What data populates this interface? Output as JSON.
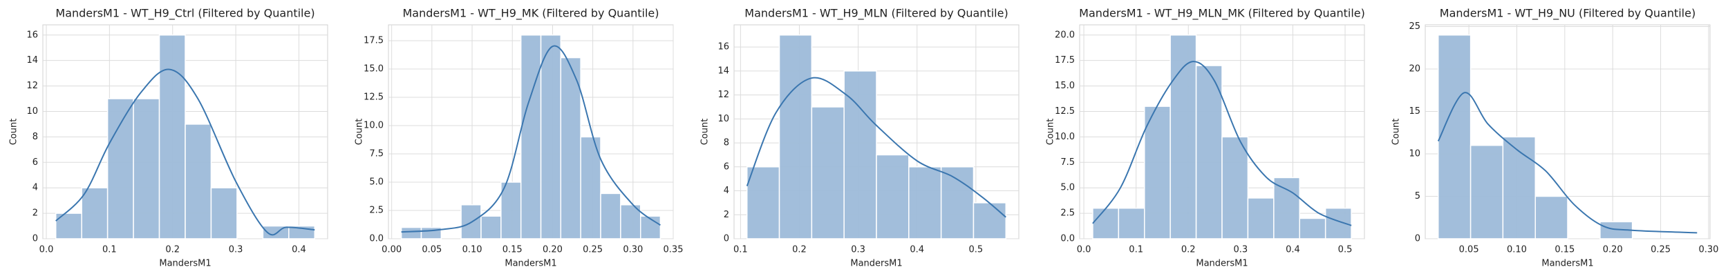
{
  "chart_data": [
    {
      "type": "histogram",
      "title": "MandersM1 - WT_H9_Ctrl (Filtered by Quantile)",
      "x_label": "MandersM1",
      "y_label": "Count",
      "bins": [
        0.015,
        0.056,
        0.097,
        0.138,
        0.179,
        0.22,
        0.261,
        0.302,
        0.343,
        0.384,
        0.425
      ],
      "values": [
        2,
        4,
        11,
        11,
        16,
        9,
        4,
        0,
        1,
        1
      ],
      "color": "#9dbad9",
      "kde": {
        "x": [
          0.015,
          0.06,
          0.1,
          0.15,
          0.195,
          0.24,
          0.3,
          0.35,
          0.38,
          0.425
        ],
        "y": [
          1.4,
          3.5,
          7.5,
          11.5,
          13.3,
          11,
          4.5,
          0.5,
          0.9,
          0.7
        ],
        "color": "#3a76af"
      },
      "xlim": [
        -0.0055,
        0.4455
      ],
      "ylim": [
        0,
        16.8
      ],
      "xticks": [
        {
          "value": 0,
          "label": "0.0"
        },
        0.1,
        0.2,
        0.3,
        0.4
      ],
      "yticks": [
        0,
        2,
        4,
        6,
        8,
        10,
        12,
        14,
        16
      ],
      "grid": true
    },
    {
      "type": "histogram",
      "title": "MandersM1 - WT_H9_MK (Filtered by Quantile)",
      "x_label": "MandersM1",
      "y_label": "Count",
      "bins": [
        0.012,
        0.0368,
        0.0616,
        0.0863,
        0.1111,
        0.1359,
        0.1607,
        0.1855,
        0.2102,
        0.235,
        0.2598,
        0.2846,
        0.3094,
        0.334
      ],
      "values": [
        1,
        1,
        0,
        3,
        2,
        5,
        18,
        18,
        16,
        9,
        4,
        3,
        2
      ],
      "color": "#9dbad9",
      "kde": {
        "x": [
          0.012,
          0.06,
          0.1,
          0.14,
          0.17,
          0.2,
          0.23,
          0.26,
          0.3,
          0.334
        ],
        "y": [
          0.6,
          0.8,
          1.5,
          4.5,
          12,
          17,
          14,
          7,
          3,
          1.2
        ],
        "color": "#3a76af"
      },
      "xlim": [
        -0.004,
        0.35
      ],
      "ylim": [
        0,
        18.9
      ],
      "xticks": [
        {
          "value": 0,
          "label": "0.00"
        },
        0.05,
        {
          "value": 0.1,
          "label": "0.10"
        },
        0.15,
        {
          "value": 0.2,
          "label": "0.20"
        },
        0.25,
        {
          "value": 0.3,
          "label": "0.30"
        },
        0.35
      ],
      "yticks": [
        {
          "value": 0,
          "label": "0.0"
        },
        2.5,
        {
          "value": 5,
          "label": "5.0"
        },
        7.5,
        {
          "value": 10,
          "label": "10.0"
        },
        12.5,
        {
          "value": 15,
          "label": "15.0"
        },
        17.5
      ],
      "grid": true
    },
    {
      "type": "histogram",
      "title": "MandersM1 - WT_H9_MLN (Filtered by Quantile)",
      "x_label": "MandersM1",
      "y_label": "Count",
      "bins": [
        0.111,
        0.166,
        0.221,
        0.276,
        0.331,
        0.386,
        0.441,
        0.496,
        0.551
      ],
      "values": [
        6,
        17,
        11,
        14,
        7,
        6,
        6,
        3
      ],
      "color": "#9dbad9",
      "kde": {
        "x": [
          0.111,
          0.16,
          0.22,
          0.28,
          0.33,
          0.4,
          0.46,
          0.51,
          0.551
        ],
        "y": [
          4.4,
          10.5,
          13.4,
          12,
          9.5,
          6.5,
          5.2,
          3.5,
          1.8
        ],
        "color": "#3a76af"
      },
      "xlim": [
        0.089,
        0.573
      ],
      "ylim": [
        0,
        17.85
      ],
      "xticks": [
        0.1,
        0.2,
        0.3,
        0.4,
        0.5
      ],
      "yticks": [
        0,
        2,
        4,
        6,
        8,
        10,
        12,
        14,
        16
      ],
      "grid": true
    },
    {
      "type": "histogram",
      "title": "MandersM1 - WT_H9_MLN_MK (Filtered by Quantile)",
      "x_label": "MandersM1",
      "y_label": "Count",
      "bins": [
        0.017,
        0.0665,
        0.116,
        0.1655,
        0.215,
        0.2645,
        0.314,
        0.3635,
        0.413,
        0.4625,
        0.512
      ],
      "values": [
        3,
        3,
        13,
        20,
        17,
        10,
        4,
        6,
        2,
        3
      ],
      "color": "#9dbad9",
      "kde": {
        "x": [
          0.017,
          0.07,
          0.12,
          0.17,
          0.21,
          0.25,
          0.3,
          0.35,
          0.4,
          0.45,
          0.512
        ],
        "y": [
          1.5,
          5,
          11,
          15.5,
          17.4,
          15.5,
          9.5,
          6,
          4.5,
          2.5,
          1.3
        ],
        "color": "#3a76af"
      },
      "xlim": [
        -0.008,
        0.537
      ],
      "ylim": [
        0,
        21
      ],
      "xticks": [
        {
          "value": 0,
          "label": "0.0"
        },
        0.1,
        0.2,
        0.3,
        0.4,
        0.5
      ],
      "yticks": [
        {
          "value": 0,
          "label": "0.0"
        },
        2.5,
        {
          "value": 5,
          "label": "5.0"
        },
        7.5,
        {
          "value": 10,
          "label": "10.0"
        },
        12.5,
        {
          "value": 15,
          "label": "15.0"
        },
        17.5,
        {
          "value": 20,
          "label": "20.0"
        }
      ],
      "grid": true
    },
    {
      "type": "histogram",
      "title": "MandersM1 - WT_H9_NU (Filtered by Quantile)",
      "x_label": "MandersM1",
      "y_label": "Count",
      "bins": [
        0.018,
        0.0518,
        0.0855,
        0.1193,
        0.153,
        0.1868,
        0.2205,
        0.2543,
        0.288
      ],
      "values": [
        24,
        11,
        12,
        5,
        0,
        2,
        0,
        0
      ],
      "color": "#9dbad9",
      "kde": {
        "x": [
          0.018,
          0.045,
          0.07,
          0.1,
          0.13,
          0.16,
          0.19,
          0.22,
          0.288
        ],
        "y": [
          11.5,
          17.2,
          13.5,
          10.5,
          8,
          4,
          1.5,
          1,
          0.7
        ],
        "color": "#3a76af"
      },
      "xlim": [
        0.0045,
        0.3015
      ],
      "ylim": [
        0,
        25.2
      ],
      "xticks": [
        0.05,
        {
          "value": 0.1,
          "label": "0.10"
        },
        0.15,
        {
          "value": 0.2,
          "label": "0.20"
        },
        0.25,
        {
          "value": 0.3,
          "label": "0.30"
        }
      ],
      "yticks": [
        0,
        5,
        10,
        15,
        20,
        25
      ],
      "grid": true
    }
  ]
}
